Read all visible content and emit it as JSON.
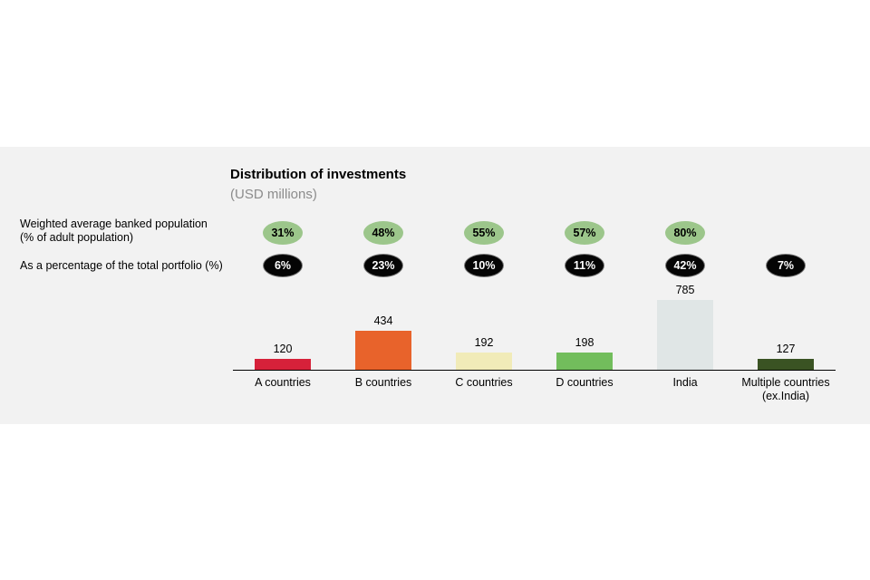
{
  "header": {
    "title": "Distribution of investments",
    "subtitle": "(USD millions)"
  },
  "rows": {
    "banked_label_line1": "Weighted average banked population",
    "banked_label_line2": "(% of adult population)",
    "portfolio_label": "As a percentage of the total portfolio (%)"
  },
  "chart_data": {
    "type": "bar",
    "title": "Distribution of investments",
    "subtitle": "(USD millions)",
    "categories": [
      "A countries",
      "B countries",
      "C countries",
      "D countries",
      "India",
      "Multiple countries (ex.India)"
    ],
    "category_lines": [
      [
        "A countries"
      ],
      [
        "B countries"
      ],
      [
        "C countries"
      ],
      [
        "D countries"
      ],
      [
        "India"
      ],
      [
        "Multiple countries",
        "(ex.India)"
      ]
    ],
    "values": [
      120,
      434,
      192,
      198,
      785,
      127
    ],
    "value_labels": [
      "120",
      "434",
      "192",
      "198",
      "785",
      "127"
    ],
    "bar_colors": [
      "#d6213a",
      "#e8632b",
      "#f1ebb8",
      "#72bd5c",
      "#e0e6e6",
      "#3a5323"
    ],
    "weighted_banked_population": [
      "31%",
      "48%",
      "55%",
      "57%",
      "80%",
      null
    ],
    "portfolio_share": [
      "6%",
      "23%",
      "10%",
      "11%",
      "42%",
      "7%"
    ],
    "ylim": [
      0,
      785
    ],
    "grid": false,
    "xlabel": "",
    "ylabel": ""
  }
}
